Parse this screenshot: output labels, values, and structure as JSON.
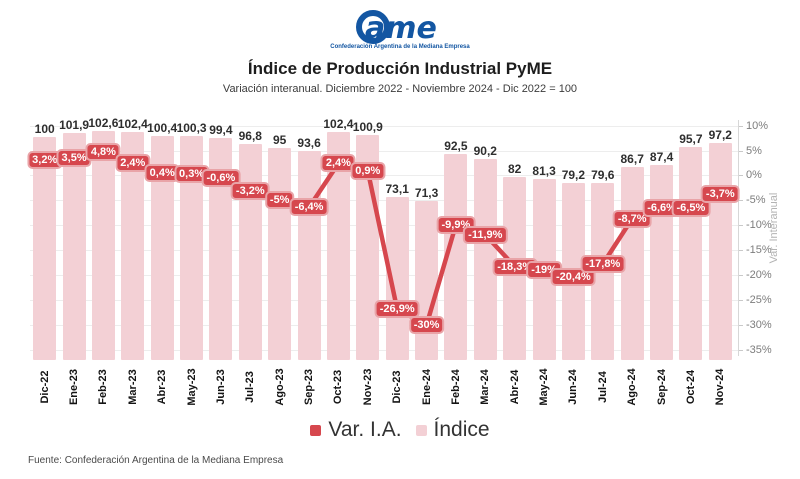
{
  "header": {
    "logo_text": "ame",
    "logo_tagline": "Confederación Argentina de la Mediana Empresa",
    "title": "Índice de Producción Industrial PyME",
    "subtitle": "Variación interanual. Diciembre 2022 - Noviembre 2024 - Dic 2022 = 100"
  },
  "chart_data": {
    "type": "bar",
    "categories": [
      "Dic-22",
      "Ene-23",
      "Feb-23",
      "Mar-23",
      "Abr-23",
      "May-23",
      "Jun-23",
      "Jul-23",
      "Ago-23",
      "Sep-23",
      "Oct-23",
      "Nov-23",
      "Dic-23",
      "Ene-24",
      "Feb-24",
      "Mar-24",
      "Abr-24",
      "May-24",
      "Jun-24",
      "Jul-24",
      "Ago-24",
      "Sep-24",
      "Oct-24",
      "Nov-24"
    ],
    "series": [
      {
        "name": "Índice",
        "type": "bar",
        "values": [
          100,
          101.9,
          102.6,
          102.4,
          100.4,
          100.3,
          99.4,
          96.8,
          95,
          93.6,
          102.4,
          100.9,
          73.1,
          71.3,
          92.5,
          90.2,
          82,
          81.3,
          79.2,
          79.6,
          86.7,
          87.4,
          95.7,
          97.2
        ],
        "labels": [
          "100",
          "101,9",
          "102,6",
          "102,4",
          "100,4",
          "100,3",
          "99,4",
          "96,8",
          "95",
          "93,6",
          "102,4",
          "100,9",
          "73,1",
          "71,3",
          "92,5",
          "90,2",
          "82",
          "81,3",
          "79,2",
          "79,6",
          "86,7",
          "87,4",
          "95,7",
          "97,2"
        ]
      },
      {
        "name": "Var. I.A.",
        "type": "line",
        "unit": "%",
        "values": [
          3.2,
          3.5,
          4.8,
          2.4,
          0.4,
          0.3,
          -0.6,
          -3.2,
          -5,
          -6.4,
          2.4,
          0.9,
          -26.9,
          -30,
          -9.9,
          -11.9,
          -18.3,
          -19,
          -20.4,
          -17.8,
          -8.7,
          -6.6,
          -6.5,
          -3.7
        ],
        "labels": [
          "3,2%",
          "3,5%",
          "4,8%",
          "2,4%",
          "0,4%",
          "0,3%",
          "-0,6%",
          "-3,2%",
          "-5%",
          "-6,4%",
          "2,4%",
          "0,9%",
          "-26,9%",
          "-30%",
          "-9,9%",
          "-11,9%",
          "-18,3%",
          "-19%",
          "-20,4%",
          "-17,8%",
          "-8,7%",
          "-6,6%",
          "-6,5%",
          "-3,7%"
        ]
      }
    ],
    "title": "Índice de Producción Industrial PyME",
    "xlabel": "",
    "ylabel_right": "Var. Interanual",
    "right_axis": {
      "min": -35,
      "max": 10,
      "ticks": [
        {
          "label": "10%",
          "value": 10
        },
        {
          "label": "5%",
          "value": 5
        },
        {
          "label": "0%",
          "value": 0
        },
        {
          "label": "-5%",
          "value": -5
        },
        {
          "label": "-10%",
          "value": -10
        },
        {
          "label": "-15%",
          "value": -15
        },
        {
          "label": "-20%",
          "value": -20
        },
        {
          "label": "-25%",
          "value": -25
        },
        {
          "label": "-30%",
          "value": -30
        },
        {
          "label": "-35%",
          "value": -35
        }
      ]
    },
    "grid": true,
    "legend_position": "bottom",
    "colors": {
      "bar": "#f3d0d5",
      "line": "#d6474e",
      "chip_bg": "#d6474e",
      "chip_border": "#e9a4a8",
      "chip_text": "#ffffff",
      "logo_blue": "#1356a2"
    }
  },
  "legend": {
    "items": [
      {
        "label": "Var. I.A.",
        "color": "#d6474e"
      },
      {
        "label": "Índice",
        "color": "#f3d0d5"
      }
    ]
  },
  "footer": {
    "source": "Fuente: Confederación Argentina de la Mediana Empresa"
  }
}
